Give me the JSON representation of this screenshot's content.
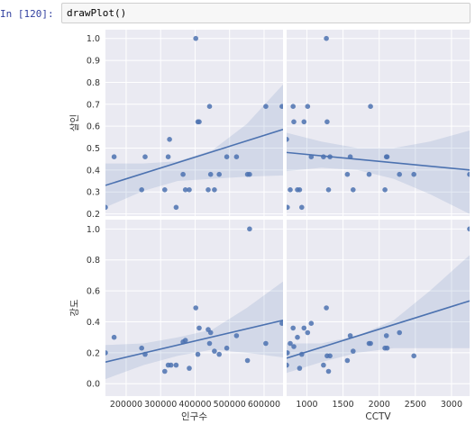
{
  "cell": {
    "prompt": "In [120]:",
    "code": "drawPlot()"
  },
  "theme": {
    "panel_bg": "#eaeaf2",
    "grid": "#ffffff",
    "point": "#4c72b0",
    "line": "#4c72b0",
    "band": "#4c72b0"
  },
  "chart_data": {
    "type": "scatter",
    "layout": "2x2 pair grid with linear regression lines and confidence bands",
    "x_vars": [
      {
        "name": "인구수",
        "label": "인구수",
        "range": [
          140000,
          655000
        ],
        "ticks": [
          200000,
          300000,
          400000,
          500000,
          600000
        ],
        "tick_labels": [
          "200000",
          "300000",
          "400000",
          "500000",
          "600000"
        ]
      },
      {
        "name": "CCTV",
        "label": "CCTV",
        "range": [
          720,
          3250
        ],
        "ticks": [
          1000,
          1500,
          2000,
          2500,
          3000
        ],
        "tick_labels": [
          "1000",
          "1500",
          "2000",
          "2500",
          "3000"
        ]
      }
    ],
    "y_vars": [
      {
        "name": "살인",
        "label": "살인",
        "range": [
          0.19,
          1.04
        ],
        "ticks": [
          0.2,
          0.3,
          0.4,
          0.5,
          0.6,
          0.7,
          0.8,
          0.9,
          1.0
        ],
        "tick_labels": [
          "0.2",
          "0.3",
          "0.4",
          "0.5",
          "0.6",
          "0.7",
          "0.8",
          "0.9",
          "1.0"
        ]
      },
      {
        "name": "강도",
        "label": "강도",
        "range": [
          -0.08,
          1.06
        ],
        "ticks": [
          0.0,
          0.2,
          0.4,
          0.6,
          0.8,
          1.0
        ],
        "tick_labels": [
          "0.0",
          "0.2",
          "0.4",
          "0.6",
          "0.8",
          "1.0"
        ]
      }
    ],
    "panels": [
      {
        "row": 0,
        "col": 0,
        "points": [
          [
            140000,
            0.23
          ],
          [
            165000,
            0.46
          ],
          [
            245000,
            0.31
          ],
          [
            255000,
            0.46
          ],
          [
            312000,
            0.31
          ],
          [
            322000,
            0.46
          ],
          [
            326000,
            0.54
          ],
          [
            345000,
            0.23
          ],
          [
            365000,
            0.38
          ],
          [
            372000,
            0.31
          ],
          [
            383000,
            0.31
          ],
          [
            402000,
            1.0
          ],
          [
            408000,
            0.62
          ],
          [
            412000,
            0.62
          ],
          [
            438000,
            0.31
          ],
          [
            442000,
            0.69
          ],
          [
            445000,
            0.38
          ],
          [
            456000,
            0.31
          ],
          [
            470000,
            0.38
          ],
          [
            492000,
            0.46
          ],
          [
            520000,
            0.46
          ],
          [
            552000,
            0.38
          ],
          [
            558000,
            0.38
          ],
          [
            605000,
            0.69
          ],
          [
            652000,
            0.69
          ]
        ],
        "fit": {
          "x": [
            140000,
            655000
          ],
          "y": [
            0.33,
            0.585
          ]
        },
        "band": {
          "x": [
            140000,
            250000,
            350000,
            450000,
            550000,
            655000
          ],
          "lower": [
            0.23,
            0.305,
            0.35,
            0.36,
            0.37,
            0.375
          ],
          "upper": [
            0.43,
            0.43,
            0.44,
            0.49,
            0.61,
            0.79
          ]
        }
      },
      {
        "row": 0,
        "col": 1,
        "points": [
          [
            720,
            0.54
          ],
          [
            730,
            0.23
          ],
          [
            770,
            0.31
          ],
          [
            810,
            0.69
          ],
          [
            820,
            0.62
          ],
          [
            870,
            0.31
          ],
          [
            900,
            0.31
          ],
          [
            930,
            0.23
          ],
          [
            960,
            0.62
          ],
          [
            1010,
            0.69
          ],
          [
            1060,
            0.46
          ],
          [
            1230,
            0.46
          ],
          [
            1270,
            1.0
          ],
          [
            1280,
            0.62
          ],
          [
            1300,
            0.31
          ],
          [
            1320,
            0.46
          ],
          [
            1560,
            0.38
          ],
          [
            1600,
            0.46
          ],
          [
            1640,
            0.31
          ],
          [
            1860,
            0.38
          ],
          [
            1880,
            0.69
          ],
          [
            2080,
            0.31
          ],
          [
            2100,
            0.46
          ],
          [
            2110,
            0.46
          ],
          [
            2280,
            0.38
          ],
          [
            2480,
            0.38
          ],
          [
            3250,
            0.38
          ]
        ],
        "fit": {
          "x": [
            720,
            3250
          ],
          "y": [
            0.48,
            0.4
          ]
        },
        "band": {
          "x": [
            720,
            1200,
            1700,
            2200,
            2700,
            3250
          ],
          "lower": [
            0.395,
            0.41,
            0.4,
            0.36,
            0.29,
            0.2
          ],
          "upper": [
            0.57,
            0.53,
            0.5,
            0.5,
            0.53,
            0.58
          ]
        }
      },
      {
        "row": 1,
        "col": 0,
        "points": [
          [
            140000,
            0.2
          ],
          [
            165000,
            0.3
          ],
          [
            245000,
            0.23
          ],
          [
            255000,
            0.19
          ],
          [
            312000,
            0.08
          ],
          [
            322000,
            0.12
          ],
          [
            330000,
            0.12
          ],
          [
            345000,
            0.12
          ],
          [
            365000,
            0.27
          ],
          [
            372000,
            0.28
          ],
          [
            383000,
            0.1
          ],
          [
            402000,
            0.49
          ],
          [
            408000,
            0.19
          ],
          [
            412000,
            0.36
          ],
          [
            438000,
            0.35
          ],
          [
            442000,
            0.26
          ],
          [
            445000,
            0.33
          ],
          [
            456000,
            0.21
          ],
          [
            470000,
            0.19
          ],
          [
            492000,
            0.23
          ],
          [
            520000,
            0.31
          ],
          [
            552000,
            0.15
          ],
          [
            558000,
            1.0
          ],
          [
            605000,
            0.26
          ],
          [
            652000,
            0.39
          ]
        ],
        "fit": {
          "x": [
            140000,
            655000
          ],
          "y": [
            0.14,
            0.41
          ]
        },
        "band": {
          "x": [
            140000,
            250000,
            350000,
            450000,
            550000,
            655000
          ],
          "lower": [
            0.03,
            0.12,
            0.18,
            0.22,
            0.2,
            0.17
          ],
          "upper": [
            0.25,
            0.26,
            0.3,
            0.35,
            0.49,
            0.66
          ]
        }
      },
      {
        "row": 1,
        "col": 1,
        "points": [
          [
            720,
            0.12
          ],
          [
            730,
            0.2
          ],
          [
            770,
            0.26
          ],
          [
            810,
            0.36
          ],
          [
            820,
            0.24
          ],
          [
            870,
            0.3
          ],
          [
            900,
            0.1
          ],
          [
            930,
            0.19
          ],
          [
            960,
            0.36
          ],
          [
            1010,
            0.33
          ],
          [
            1060,
            0.39
          ],
          [
            1230,
            0.12
          ],
          [
            1270,
            0.49
          ],
          [
            1280,
            0.18
          ],
          [
            1300,
            0.08
          ],
          [
            1320,
            0.18
          ],
          [
            1560,
            0.15
          ],
          [
            1600,
            0.31
          ],
          [
            1640,
            0.21
          ],
          [
            1860,
            0.26
          ],
          [
            1880,
            0.26
          ],
          [
            2080,
            0.23
          ],
          [
            2100,
            0.31
          ],
          [
            2110,
            0.23
          ],
          [
            2280,
            0.33
          ],
          [
            2480,
            0.18
          ],
          [
            3250,
            1.0
          ]
        ],
        "fit": {
          "x": [
            720,
            3250
          ],
          "y": [
            0.165,
            0.535
          ]
        },
        "band": {
          "x": [
            720,
            1200,
            1700,
            2200,
            2700,
            3250
          ],
          "lower": [
            0.07,
            0.14,
            0.2,
            0.23,
            0.23,
            0.23
          ],
          "upper": [
            0.26,
            0.26,
            0.31,
            0.41,
            0.6,
            0.83
          ]
        }
      }
    ]
  }
}
